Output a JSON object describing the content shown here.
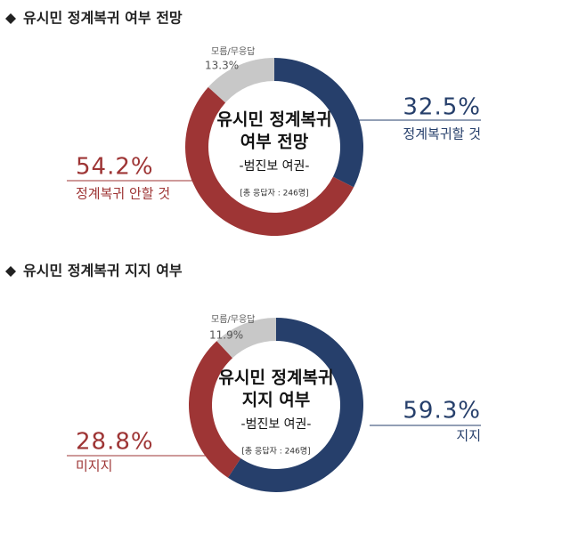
{
  "chart_data": [
    {
      "type": "donut",
      "title": "유시민 정계복귀 여부 전망",
      "center_text": [
        "유시민 정계복귀",
        "여부 전망",
        "-범진보 여권-"
      ],
      "note": "[총 응답자 : 246명]",
      "categories": [
        "정계복귀할 것",
        "정계복귀 안할 것",
        "모름/무응답"
      ],
      "values": [
        32.5,
        54.2,
        13.3
      ],
      "value_labels": [
        "32.5%",
        "54.2%",
        "13.3%"
      ],
      "colors": [
        "#263f6b",
        "#9e3535",
        "#c8c8c8"
      ]
    },
    {
      "type": "donut",
      "title": "유시민 정계복귀 지지 여부",
      "center_text": [
        "유시민 정계복귀",
        "지지 여부",
        "-범진보 여권-"
      ],
      "note": "[총 응답자 : 246명]",
      "categories": [
        "지지",
        "미지지",
        "모름/무응답"
      ],
      "values": [
        59.3,
        28.8,
        11.9
      ],
      "value_labels": [
        "59.3%",
        "28.8%",
        "11.9%"
      ],
      "colors": [
        "#263f6b",
        "#9e3535",
        "#c8c8c8"
      ]
    }
  ]
}
